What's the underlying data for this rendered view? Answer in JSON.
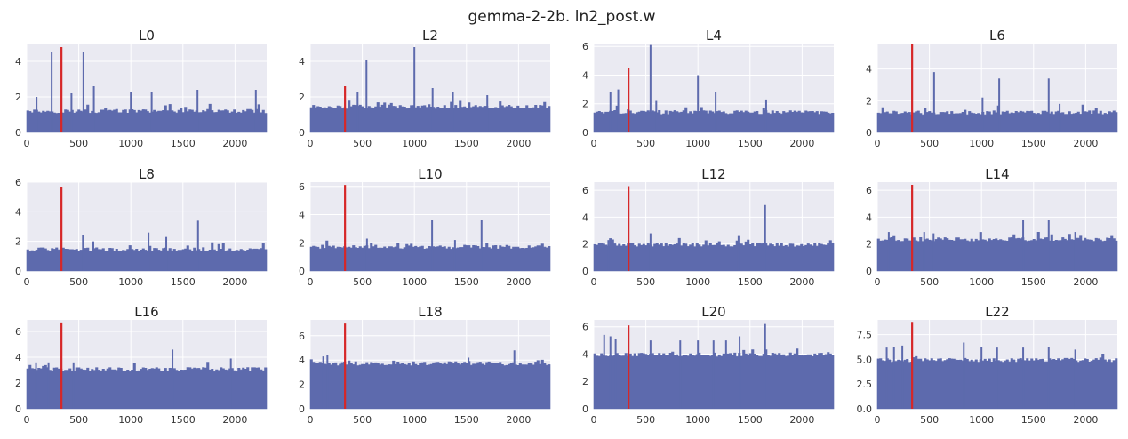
{
  "figure_title": "gemma-2-2b. ln2_post.w",
  "colors": {
    "background": "#eaeaf2",
    "grid": "#ffffff",
    "bars": "#5d6aad",
    "marker": "#d62728"
  },
  "chart_data": [
    {
      "type": "bar",
      "title": "L0",
      "xlim": [
        0,
        2304
      ],
      "ylim": [
        0,
        5.0
      ],
      "xticks": [
        0,
        500,
        1000,
        1500,
        2000
      ],
      "xtick_labels": [
        "0",
        "500",
        "1000",
        "1500",
        "2000"
      ],
      "yticks": [
        0,
        2,
        4
      ],
      "ytick_labels": [
        "0",
        "2",
        "4"
      ],
      "marker_x": 334,
      "marker_height": 4.8,
      "baseline": 1.15,
      "spikes": [
        [
          240,
          4.5
        ],
        [
          545,
          4.5
        ],
        [
          645,
          2.6
        ],
        [
          95,
          2.0
        ],
        [
          1200,
          2.3
        ],
        [
          1640,
          2.4
        ],
        [
          2200,
          2.4
        ],
        [
          430,
          2.2
        ],
        [
          1000,
          2.3
        ]
      ]
    },
    {
      "type": "bar",
      "title": "L2",
      "xlim": [
        0,
        2304
      ],
      "ylim": [
        0,
        5.0
      ],
      "xticks": [
        0,
        500,
        1000,
        1500,
        2000
      ],
      "xtick_labels": [
        "0",
        "500",
        "1000",
        "1500",
        "2000"
      ],
      "yticks": [
        0,
        2,
        4
      ],
      "ytick_labels": [
        "0",
        "2",
        "4"
      ],
      "marker_x": 334,
      "marker_height": 2.6,
      "baseline": 1.4,
      "spikes": [
        [
          540,
          4.1
        ],
        [
          1000,
          4.8
        ],
        [
          455,
          2.3
        ],
        [
          1175,
          2.5
        ],
        [
          1370,
          2.3
        ],
        [
          1700,
          2.1
        ]
      ]
    },
    {
      "type": "bar",
      "title": "L4",
      "xlim": [
        0,
        2304
      ],
      "ylim": [
        0,
        6.2
      ],
      "xticks": [
        0,
        500,
        1000,
        1500,
        2000
      ],
      "xtick_labels": [
        "0",
        "500",
        "1000",
        "1500",
        "2000"
      ],
      "yticks": [
        0,
        2,
        4,
        6
      ],
      "ytick_labels": [
        "0",
        "2",
        "4",
        "6"
      ],
      "marker_x": 334,
      "marker_height": 4.5,
      "baseline": 1.35,
      "spikes": [
        [
          545,
          6.1
        ],
        [
          1000,
          4.0
        ],
        [
          235,
          3.0
        ],
        [
          160,
          2.8
        ],
        [
          1170,
          2.8
        ],
        [
          1655,
          2.3
        ],
        [
          600,
          2.2
        ]
      ]
    },
    {
      "type": "bar",
      "title": "L6",
      "xlim": [
        0,
        2304
      ],
      "ylim": [
        0,
        5.6
      ],
      "xticks": [
        0,
        500,
        1000,
        1500,
        2000
      ],
      "xtick_labels": [
        "0",
        "500",
        "1000",
        "1500",
        "2000"
      ],
      "yticks": [
        0,
        2,
        4
      ],
      "ytick_labels": [
        "0",
        "2",
        "4"
      ],
      "marker_x": 334,
      "marker_height": 5.6,
      "baseline": 1.2,
      "spikes": [
        [
          545,
          3.8
        ],
        [
          1170,
          3.4
        ],
        [
          1645,
          3.4
        ],
        [
          1010,
          2.2
        ],
        [
          1750,
          1.8
        ]
      ]
    },
    {
      "type": "bar",
      "title": "L8",
      "xlim": [
        0,
        2304
      ],
      "ylim": [
        0,
        6.0
      ],
      "xticks": [
        0,
        500,
        1000,
        1500,
        2000
      ],
      "xtick_labels": [
        "0",
        "500",
        "1000",
        "1500",
        "2000"
      ],
      "yticks": [
        0,
        2,
        4,
        6
      ],
      "ytick_labels": [
        "0",
        "2",
        "4",
        "6"
      ],
      "marker_x": 334,
      "marker_height": 5.7,
      "baseline": 1.4,
      "spikes": [
        [
          540,
          2.4
        ],
        [
          1170,
          2.6
        ],
        [
          1340,
          2.3
        ],
        [
          1645,
          3.4
        ],
        [
          640,
          2.0
        ]
      ]
    },
    {
      "type": "bar",
      "title": "L10",
      "xlim": [
        0,
        2304
      ],
      "ylim": [
        0,
        6.3
      ],
      "xticks": [
        0,
        500,
        1000,
        1500,
        2000
      ],
      "xtick_labels": [
        "0",
        "500",
        "1000",
        "1500",
        "2000"
      ],
      "yticks": [
        0,
        2,
        4,
        6
      ],
      "ytick_labels": [
        "0",
        "2",
        "4",
        "6"
      ],
      "marker_x": 334,
      "marker_height": 6.1,
      "baseline": 1.65,
      "spikes": [
        [
          1170,
          3.6
        ],
        [
          1645,
          3.6
        ],
        [
          545,
          2.3
        ],
        [
          1390,
          2.2
        ]
      ]
    },
    {
      "type": "bar",
      "title": "L12",
      "xlim": [
        0,
        2304
      ],
      "ylim": [
        0,
        6.6
      ],
      "xticks": [
        0,
        500,
        1000,
        1500,
        2000
      ],
      "xtick_labels": [
        "0",
        "500",
        "1000",
        "1500",
        "2000"
      ],
      "yticks": [
        0,
        2,
        4,
        6
      ],
      "ytick_labels": [
        "0",
        "2",
        "4",
        "6"
      ],
      "marker_x": 334,
      "marker_height": 6.3,
      "baseline": 1.9,
      "spikes": [
        [
          1645,
          4.9
        ],
        [
          545,
          2.8
        ],
        [
          1390,
          2.6
        ],
        [
          140,
          2.3
        ]
      ]
    },
    {
      "type": "bar",
      "title": "L14",
      "xlim": [
        0,
        2304
      ],
      "ylim": [
        0,
        6.6
      ],
      "xticks": [
        0,
        500,
        1000,
        1500,
        2000
      ],
      "xtick_labels": [
        "0",
        "500",
        "1000",
        "1500",
        "2000"
      ],
      "yticks": [
        0,
        2,
        4,
        6
      ],
      "ytick_labels": [
        "0",
        "2",
        "4",
        "6"
      ],
      "marker_x": 334,
      "marker_height": 6.4,
      "baseline": 2.3,
      "spikes": [
        [
          1400,
          3.8
        ],
        [
          1645,
          3.8
        ],
        [
          110,
          2.9
        ],
        [
          450,
          2.9
        ],
        [
          540,
          2.8
        ],
        [
          1900,
          2.9
        ]
      ]
    },
    {
      "type": "bar",
      "title": "L16",
      "xlim": [
        0,
        2304
      ],
      "ylim": [
        0,
        6.9
      ],
      "xticks": [
        0,
        500,
        1000,
        1500,
        2000
      ],
      "xtick_labels": [
        "0",
        "500",
        "1000",
        "1500",
        "2000"
      ],
      "yticks": [
        0,
        2,
        4,
        6
      ],
      "ytick_labels": [
        "0",
        "2",
        "4",
        "6"
      ],
      "marker_x": 334,
      "marker_height": 6.7,
      "baseline": 3.0,
      "spikes": [
        [
          1400,
          4.6
        ],
        [
          1960,
          3.9
        ],
        [
          90,
          3.6
        ],
        [
          210,
          3.6
        ],
        [
          450,
          3.6
        ]
      ]
    },
    {
      "type": "bar",
      "title": "L18",
      "xlim": [
        0,
        2304
      ],
      "ylim": [
        0,
        7.3
      ],
      "xticks": [
        0,
        500,
        1000,
        1500,
        2000
      ],
      "xtick_labels": [
        "0",
        "500",
        "1000",
        "1500",
        "2000"
      ],
      "yticks": [
        0,
        2,
        4,
        6
      ],
      "ytick_labels": [
        "0",
        "2",
        "4",
        "6"
      ],
      "marker_x": 334,
      "marker_height": 7.0,
      "baseline": 3.65,
      "spikes": [
        [
          1960,
          4.8
        ],
        [
          165,
          4.4
        ],
        [
          125,
          4.3
        ],
        [
          1520,
          4.2
        ]
      ]
    },
    {
      "type": "bar",
      "title": "L20",
      "xlim": [
        0,
        2304
      ],
      "ylim": [
        0,
        6.5
      ],
      "xticks": [
        0,
        500,
        1000,
        1500,
        2000
      ],
      "xtick_labels": [
        "0",
        "500",
        "1000",
        "1500",
        "2000"
      ],
      "yticks": [
        0,
        2,
        4,
        6
      ],
      "ytick_labels": [
        "0",
        "2",
        "4",
        "6"
      ],
      "marker_x": 334,
      "marker_height": 6.1,
      "baseline": 3.9,
      "spikes": [
        [
          1645,
          6.2
        ],
        [
          100,
          5.4
        ],
        [
          160,
          5.3
        ],
        [
          210,
          5.1
        ],
        [
          1400,
          5.3
        ],
        [
          545,
          5.0
        ],
        [
          830,
          5.0
        ],
        [
          1000,
          5.0
        ],
        [
          1150,
          5.0
        ],
        [
          1270,
          5.0
        ]
      ]
    },
    {
      "type": "bar",
      "title": "L22",
      "xlim": [
        0,
        2304
      ],
      "ylim": [
        0,
        9.0
      ],
      "xticks": [
        0,
        500,
        1000,
        1500,
        2000
      ],
      "xtick_labels": [
        "0",
        "500",
        "1000",
        "1500",
        "2000"
      ],
      "yticks": [
        0,
        2.5,
        5.0,
        7.5
      ],
      "ytick_labels": [
        "0.0",
        "2.5",
        "5.0",
        "7.5"
      ],
      "marker_x": 334,
      "marker_height": 8.8,
      "baseline": 4.85,
      "spikes": [
        [
          90,
          6.2
        ],
        [
          160,
          6.3
        ],
        [
          240,
          6.4
        ],
        [
          830,
          6.7
        ],
        [
          1000,
          6.3
        ],
        [
          1150,
          6.2
        ],
        [
          1400,
          6.2
        ],
        [
          1645,
          6.3
        ],
        [
          1900,
          6.0
        ]
      ]
    }
  ]
}
